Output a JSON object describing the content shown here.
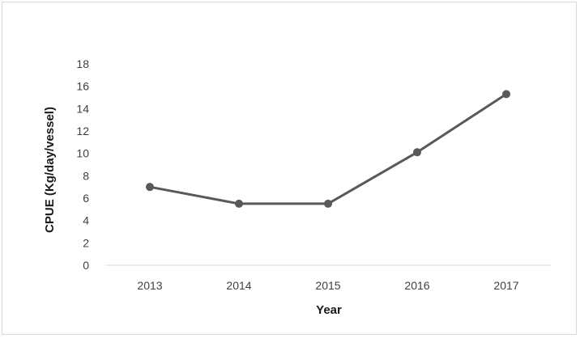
{
  "chart_data": {
    "type": "line",
    "title": "",
    "xlabel": "Year",
    "ylabel": "CPUE (Kg/day/vessel)",
    "categories": [
      "2013",
      "2014",
      "2015",
      "2016",
      "2017"
    ],
    "series": [
      {
        "values": [
          7.0,
          5.5,
          5.5,
          10.1,
          15.3
        ],
        "color": "#595959"
      }
    ],
    "ylim": [
      0,
      18
    ],
    "yticks": [
      "0",
      "2",
      "4",
      "6",
      "8",
      "10",
      "12",
      "14",
      "16",
      "18"
    ],
    "grid": false,
    "legend": "none"
  }
}
